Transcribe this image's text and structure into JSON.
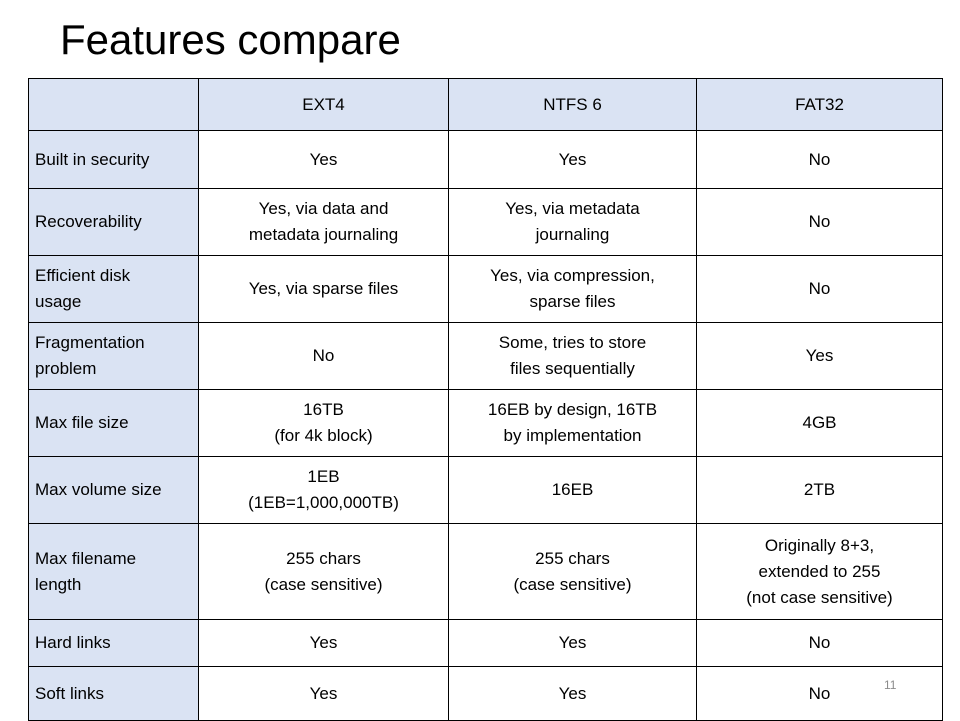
{
  "slide": {
    "title": "Features compare",
    "page_number": "11"
  },
  "table": {
    "headers": [
      "",
      "EXT4",
      "NTFS 6",
      "FAT32"
    ],
    "rows": [
      {
        "label": "Built in security",
        "cells": [
          "Yes",
          "Yes",
          "No"
        ]
      },
      {
        "label": "Recoverability",
        "cells": [
          "Yes, via data and\nmetadata journaling",
          "Yes, via metadata\njournaling",
          "No"
        ]
      },
      {
        "label": "Efficient disk\nusage",
        "cells": [
          "Yes, via sparse files",
          "Yes, via compression,\nsparse files",
          "No"
        ]
      },
      {
        "label": "Fragmentation\nproblem",
        "cells": [
          "No",
          "Some, tries to store\nfiles sequentially",
          "Yes"
        ]
      },
      {
        "label": "Max file size",
        "cells": [
          "16TB\n(for 4k block)",
          "16EB by design, 16TB\nby implementation",
          "4GB"
        ]
      },
      {
        "label": "Max volume size",
        "cells": [
          "1EB\n(1EB=1,000,000TB)",
          "16EB",
          "2TB"
        ]
      },
      {
        "label": "Max filename\nlength",
        "cells": [
          "255 chars\n(case sensitive)",
          "255 chars\n(case sensitive)",
          "Originally 8+3,\nextended to 255\n(not case sensitive)"
        ]
      },
      {
        "label": "Hard links",
        "cells": [
          "Yes",
          "Yes",
          "No"
        ]
      },
      {
        "label": "Soft links",
        "cells": [
          "Yes",
          "Yes",
          "No"
        ]
      }
    ]
  }
}
